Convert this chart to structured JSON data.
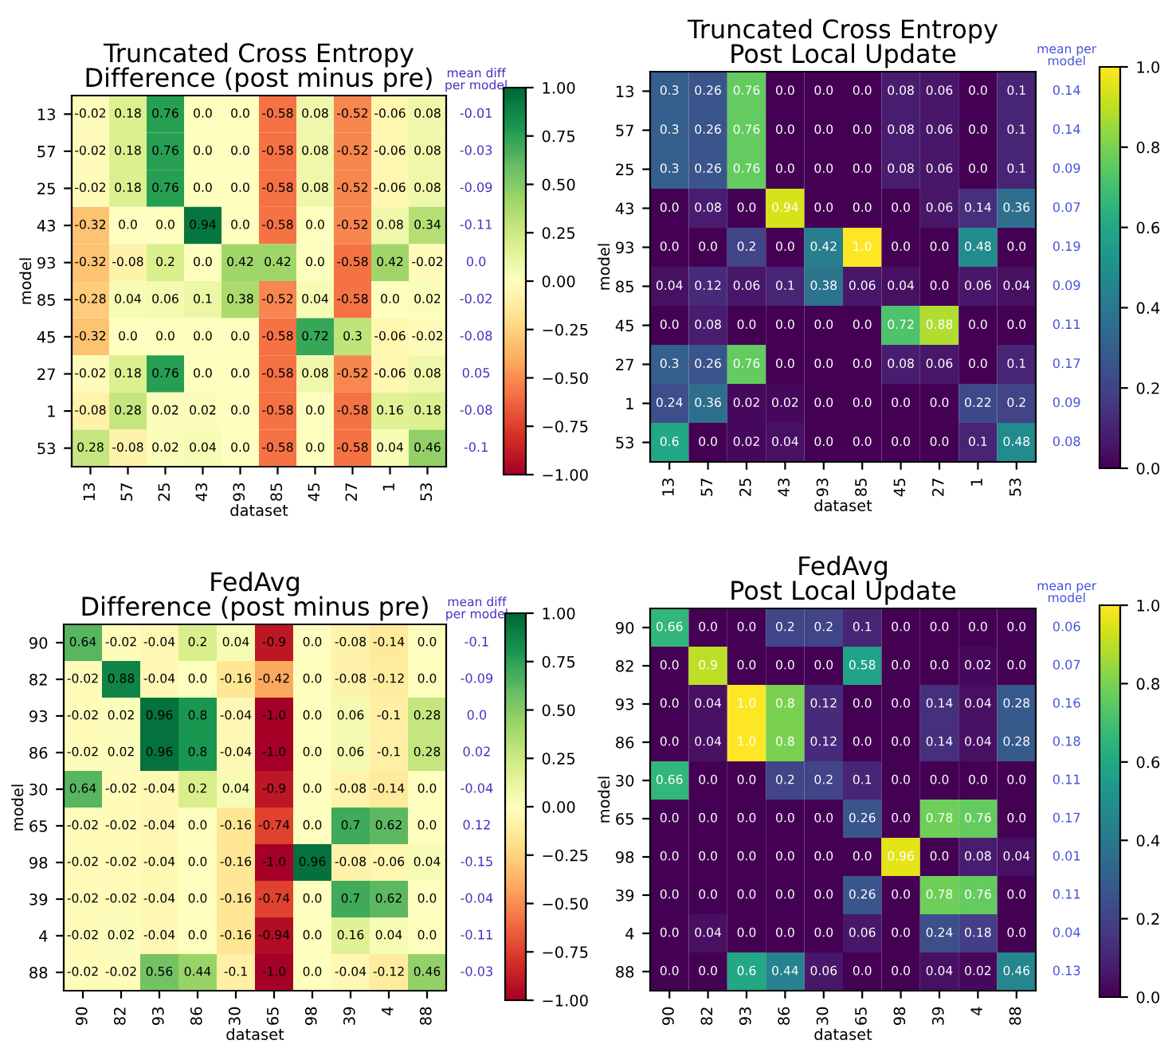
{
  "chart_data": [
    {
      "type": "heatmap",
      "title": "Truncated Cross Entropy\nDifference (post minus pre)",
      "xlabel": "dataset",
      "ylabel": "model",
      "categories": [
        "13",
        "57",
        "25",
        "43",
        "93",
        "85",
        "45",
        "27",
        "1",
        "53"
      ],
      "y_categories": [
        "13",
        "57",
        "25",
        "43",
        "93",
        "85",
        "45",
        "27",
        "1",
        "53"
      ],
      "y2_categories": [
        "-0.01",
        "-0.03",
        "-0.09",
        "-0.11",
        "0.0",
        "-0.02",
        "-0.08",
        "0.05",
        "-0.08",
        "-0.1"
      ],
      "annotations": [
        "mean diff\nper model"
      ],
      "cells": [
        [
          -0.02,
          0.18,
          0.76,
          0,
          0,
          -0.58,
          0.08,
          -0.52,
          -0.06,
          0.08
        ],
        [
          -0.02,
          0.18,
          0.76,
          0,
          0,
          -0.58,
          0.08,
          -0.52,
          -0.06,
          0.08
        ],
        [
          -0.02,
          0.18,
          0.76,
          0,
          0,
          -0.58,
          0.08,
          -0.52,
          -0.06,
          0.08
        ],
        [
          -0.32,
          0,
          0,
          0.94,
          0,
          -0.58,
          0,
          -0.52,
          0.08,
          0.34
        ],
        [
          -0.32,
          -0.08,
          0.2,
          0,
          0.42,
          0.42,
          0,
          -0.58,
          0.42,
          -0.02
        ],
        [
          -0.28,
          0.04,
          0.06,
          0.1,
          0.38,
          -0.52,
          0.04,
          -0.58,
          0,
          0.02
        ],
        [
          -0.32,
          0,
          0,
          0,
          0,
          -0.58,
          0.72,
          0.3,
          -0.06,
          -0.02
        ],
        [
          -0.02,
          0.18,
          0.76,
          0,
          0,
          -0.58,
          0.08,
          -0.52,
          -0.06,
          0.08
        ],
        [
          -0.08,
          0.28,
          0.02,
          0.02,
          0,
          -0.58,
          0,
          -0.58,
          0.16,
          0.18
        ],
        [
          0.28,
          -0.08,
          0.02,
          0.04,
          0,
          -0.58,
          0,
          -0.58,
          0.04,
          0.46
        ]
      ],
      "cell_labels": [
        [
          "-0.02",
          "0.18",
          "0.76",
          "0.0",
          "0.0",
          "-0.58",
          "0.08",
          "-0.52",
          "-0.06",
          "0.08"
        ],
        [
          "-0.02",
          "0.18",
          "0.76",
          "0.0",
          "0.0",
          "-0.58",
          "0.08",
          "-0.52",
          "-0.06",
          "0.08"
        ],
        [
          "-0.02",
          "0.18",
          "0.76",
          "0.0",
          "0.0",
          "-0.58",
          "0.08",
          "-0.52",
          "-0.06",
          "0.08"
        ],
        [
          "-0.32",
          "0.0",
          "0.0",
          "0.94",
          "0.0",
          "-0.58",
          "0.0",
          "-0.52",
          "0.08",
          "0.34"
        ],
        [
          "-0.32",
          "-0.08",
          "0.2",
          "0.0",
          "0.42",
          "0.42",
          "0.0",
          "-0.58",
          "0.42",
          "-0.02"
        ],
        [
          "-0.28",
          "0.04",
          "0.06",
          "0.1",
          "0.38",
          "-0.52",
          "0.04",
          "-0.58",
          "0.0",
          "0.02"
        ],
        [
          "-0.32",
          "0.0",
          "0.0",
          "0.0",
          "0.0",
          "-0.58",
          "0.72",
          "0.3",
          "-0.06",
          "-0.02"
        ],
        [
          "-0.02",
          "0.18",
          "0.76",
          "0.0",
          "0.0",
          "-0.58",
          "0.08",
          "-0.52",
          "-0.06",
          "0.08"
        ],
        [
          "-0.08",
          "0.28",
          "0.02",
          "0.02",
          "0.0",
          "-0.58",
          "0.0",
          "-0.58",
          "0.16",
          "0.18"
        ],
        [
          "0.28",
          "-0.08",
          "0.02",
          "0.04",
          "0.0",
          "-0.58",
          "0.0",
          "-0.58",
          "0.04",
          "0.46"
        ]
      ],
      "clim": [
        -1,
        1
      ],
      "cticks": [
        {
          "value": -1,
          "label": "−1.00"
        },
        {
          "value": -0.75,
          "label": "−0.75"
        },
        {
          "value": -0.5,
          "label": "−0.50"
        },
        {
          "value": -0.25,
          "label": "−0.25"
        },
        {
          "value": 0,
          "label": "0.00"
        },
        {
          "value": 0.25,
          "label": "0.25"
        },
        {
          "value": 0.5,
          "label": "0.50"
        },
        {
          "value": 0.75,
          "label": "0.75"
        },
        {
          "value": 1,
          "label": "1.00"
        }
      ]
    },
    {
      "type": "heatmap",
      "title": "Truncated Cross Entropy\nPost Local Update",
      "xlabel": "dataset",
      "ylabel": "model",
      "categories": [
        "13",
        "57",
        "25",
        "43",
        "93",
        "85",
        "45",
        "27",
        "1",
        "53"
      ],
      "y_categories": [
        "13",
        "57",
        "25",
        "43",
        "93",
        "85",
        "45",
        "27",
        "1",
        "53"
      ],
      "y2_categories": [
        "0.14",
        "0.14",
        "0.09",
        "0.07",
        "0.19",
        "0.09",
        "0.11",
        "0.17",
        "0.09",
        "0.08"
      ],
      "annotations": [
        "mean per\nmodel"
      ],
      "cells": [
        [
          0.3,
          0.26,
          0.76,
          0,
          0,
          0,
          0.08,
          0.06,
          0,
          0.1
        ],
        [
          0.3,
          0.26,
          0.76,
          0,
          0,
          0,
          0.08,
          0.06,
          0,
          0.1
        ],
        [
          0.3,
          0.26,
          0.76,
          0,
          0,
          0,
          0.08,
          0.06,
          0,
          0.1
        ],
        [
          0,
          0.08,
          0,
          0.94,
          0,
          0,
          0,
          0.06,
          0.14,
          0.36
        ],
        [
          0,
          0,
          0.2,
          0,
          0.42,
          1,
          0,
          0,
          0.48,
          0
        ],
        [
          0.04,
          0.12,
          0.06,
          0.1,
          0.38,
          0.06,
          0.04,
          0,
          0.06,
          0.04
        ],
        [
          0,
          0.08,
          0,
          0,
          0,
          0,
          0.72,
          0.88,
          0,
          0
        ],
        [
          0.3,
          0.26,
          0.76,
          0,
          0,
          0,
          0.08,
          0.06,
          0,
          0.1
        ],
        [
          0.24,
          0.36,
          0.02,
          0.02,
          0,
          0,
          0,
          0,
          0.22,
          0.2
        ],
        [
          0.6,
          0,
          0.02,
          0.04,
          0,
          0,
          0,
          0,
          0.1,
          0.48
        ]
      ],
      "cell_labels": [
        [
          "0.3",
          "0.26",
          "0.76",
          "0.0",
          "0.0",
          "0.0",
          "0.08",
          "0.06",
          "0.0",
          "0.1"
        ],
        [
          "0.3",
          "0.26",
          "0.76",
          "0.0",
          "0.0",
          "0.0",
          "0.08",
          "0.06",
          "0.0",
          "0.1"
        ],
        [
          "0.3",
          "0.26",
          "0.76",
          "0.0",
          "0.0",
          "0.0",
          "0.08",
          "0.06",
          "0.0",
          "0.1"
        ],
        [
          "0.0",
          "0.08",
          "0.0",
          "0.94",
          "0.0",
          "0.0",
          "0.0",
          "0.06",
          "0.14",
          "0.36"
        ],
        [
          "0.0",
          "0.0",
          "0.2",
          "0.0",
          "0.42",
          "1.0",
          "0.0",
          "0.0",
          "0.48",
          "0.0"
        ],
        [
          "0.04",
          "0.12",
          "0.06",
          "0.1",
          "0.38",
          "0.06",
          "0.04",
          "0.0",
          "0.06",
          "0.04"
        ],
        [
          "0.0",
          "0.08",
          "0.0",
          "0.0",
          "0.0",
          "0.0",
          "0.72",
          "0.88",
          "0.0",
          "0.0"
        ],
        [
          "0.3",
          "0.26",
          "0.76",
          "0.0",
          "0.0",
          "0.0",
          "0.08",
          "0.06",
          "0.0",
          "0.1"
        ],
        [
          "0.24",
          "0.36",
          "0.02",
          "0.02",
          "0.0",
          "0.0",
          "0.0",
          "0.0",
          "0.22",
          "0.2"
        ],
        [
          "0.6",
          "0.0",
          "0.02",
          "0.04",
          "0.0",
          "0.0",
          "0.0",
          "0.0",
          "0.1",
          "0.48"
        ]
      ],
      "clim": [
        0,
        1
      ],
      "cticks": [
        {
          "value": 0,
          "label": "0.0"
        },
        {
          "value": 0.2,
          "label": "0.2"
        },
        {
          "value": 0.4,
          "label": "0.4"
        },
        {
          "value": 0.6,
          "label": "0.6"
        },
        {
          "value": 0.8,
          "label": "0.8"
        },
        {
          "value": 1,
          "label": "1.0"
        }
      ]
    },
    {
      "type": "heatmap",
      "title": "FedAvg\nDifference (post minus pre)",
      "xlabel": "dataset",
      "ylabel": "model",
      "categories": [
        "90",
        "82",
        "93",
        "86",
        "30",
        "65",
        "98",
        "39",
        "4",
        "88"
      ],
      "y_categories": [
        "90",
        "82",
        "93",
        "86",
        "30",
        "65",
        "98",
        "39",
        "4",
        "88"
      ],
      "y2_categories": [
        "-0.1",
        "-0.09",
        "0.0",
        "0.02",
        "-0.04",
        "0.12",
        "-0.15",
        "-0.04",
        "-0.11",
        "-0.03"
      ],
      "annotations": [
        "mean diff\nper model"
      ],
      "cells": [
        [
          0.64,
          -0.02,
          -0.04,
          0.2,
          0.04,
          -0.9,
          0,
          -0.08,
          -0.14,
          0
        ],
        [
          -0.02,
          0.88,
          -0.04,
          0,
          -0.16,
          -0.42,
          0,
          -0.08,
          -0.12,
          0
        ],
        [
          -0.02,
          0.02,
          0.96,
          0.8,
          -0.04,
          -1,
          0,
          0.06,
          -0.1,
          0.28
        ],
        [
          -0.02,
          0.02,
          0.96,
          0.8,
          -0.04,
          -1,
          0,
          0.06,
          -0.1,
          0.28
        ],
        [
          0.64,
          -0.02,
          -0.04,
          0.2,
          0.04,
          -0.9,
          0,
          -0.08,
          -0.14,
          0
        ],
        [
          -0.02,
          -0.02,
          -0.04,
          0,
          -0.16,
          -0.74,
          0,
          0.7,
          0.62,
          0
        ],
        [
          -0.02,
          -0.02,
          -0.04,
          0,
          -0.16,
          -1,
          0.96,
          -0.08,
          -0.06,
          0.04
        ],
        [
          -0.02,
          -0.02,
          -0.04,
          0,
          -0.16,
          -0.74,
          0,
          0.7,
          0.62,
          0
        ],
        [
          -0.02,
          0.02,
          -0.04,
          0,
          -0.16,
          -0.94,
          0,
          0.16,
          0.04,
          0
        ],
        [
          -0.02,
          -0.02,
          0.56,
          0.44,
          -0.1,
          -1,
          0,
          -0.04,
          -0.12,
          0.46
        ]
      ],
      "cell_labels": [
        [
          "0.64",
          "-0.02",
          "-0.04",
          "0.2",
          "0.04",
          "-0.9",
          "0.0",
          "-0.08",
          "-0.14",
          "0.0"
        ],
        [
          "-0.02",
          "0.88",
          "-0.04",
          "0.0",
          "-0.16",
          "-0.42",
          "0.0",
          "-0.08",
          "-0.12",
          "0.0"
        ],
        [
          "-0.02",
          "0.02",
          "0.96",
          "0.8",
          "-0.04",
          "-1.0",
          "0.0",
          "0.06",
          "-0.1",
          "0.28"
        ],
        [
          "-0.02",
          "0.02",
          "0.96",
          "0.8",
          "-0.04",
          "-1.0",
          "0.0",
          "0.06",
          "-0.1",
          "0.28"
        ],
        [
          "0.64",
          "-0.02",
          "-0.04",
          "0.2",
          "0.04",
          "-0.9",
          "0.0",
          "-0.08",
          "-0.14",
          "0.0"
        ],
        [
          "-0.02",
          "-0.02",
          "-0.04",
          "0.0",
          "-0.16",
          "-0.74",
          "0.0",
          "0.7",
          "0.62",
          "0.0"
        ],
        [
          "-0.02",
          "-0.02",
          "-0.04",
          "0.0",
          "-0.16",
          "-1.0",
          "0.96",
          "-0.08",
          "-0.06",
          "0.04"
        ],
        [
          "-0.02",
          "-0.02",
          "-0.04",
          "0.0",
          "-0.16",
          "-0.74",
          "0.0",
          "0.7",
          "0.62",
          "0.0"
        ],
        [
          "-0.02",
          "0.02",
          "-0.04",
          "0.0",
          "-0.16",
          "-0.94",
          "0.0",
          "0.16",
          "0.04",
          "0.0"
        ],
        [
          "-0.02",
          "-0.02",
          "0.56",
          "0.44",
          "-0.1",
          "-1.0",
          "0.0",
          "-0.04",
          "-0.12",
          "0.46"
        ]
      ],
      "clim": [
        -1,
        1
      ],
      "cticks": [
        {
          "value": -1,
          "label": "−1.00"
        },
        {
          "value": -0.75,
          "label": "−0.75"
        },
        {
          "value": -0.5,
          "label": "−0.50"
        },
        {
          "value": -0.25,
          "label": "−0.25"
        },
        {
          "value": 0,
          "label": "0.00"
        },
        {
          "value": 0.25,
          "label": "0.25"
        },
        {
          "value": 0.5,
          "label": "0.50"
        },
        {
          "value": 0.75,
          "label": "0.75"
        },
        {
          "value": 1,
          "label": "1.00"
        }
      ]
    },
    {
      "type": "heatmap",
      "title": "FedAvg\nPost Local Update",
      "xlabel": "dataset",
      "ylabel": "model",
      "categories": [
        "90",
        "82",
        "93",
        "86",
        "30",
        "65",
        "98",
        "39",
        "4",
        "88"
      ],
      "y_categories": [
        "90",
        "82",
        "93",
        "86",
        "30",
        "65",
        "98",
        "39",
        "4",
        "88"
      ],
      "y2_categories": [
        "0.06",
        "0.07",
        "0.16",
        "0.18",
        "0.11",
        "0.17",
        "0.01",
        "0.11",
        "0.04",
        "0.13"
      ],
      "annotations": [
        "mean per\nmodel"
      ],
      "cells": [
        [
          0.66,
          0,
          0,
          0.2,
          0.2,
          0.1,
          0,
          0,
          0,
          0
        ],
        [
          0,
          0.9,
          0,
          0,
          0,
          0.58,
          0,
          0,
          0.02,
          0
        ],
        [
          0,
          0.04,
          1,
          0.8,
          0.12,
          0,
          0,
          0.14,
          0.04,
          0.28
        ],
        [
          0,
          0.04,
          1,
          0.8,
          0.12,
          0,
          0,
          0.14,
          0.04,
          0.28
        ],
        [
          0.66,
          0,
          0,
          0.2,
          0.2,
          0.1,
          0,
          0,
          0,
          0
        ],
        [
          0,
          0,
          0,
          0,
          0,
          0.26,
          0,
          0.78,
          0.76,
          0
        ],
        [
          0,
          0,
          0,
          0,
          0,
          0,
          0.96,
          0,
          0.08,
          0.04
        ],
        [
          0,
          0,
          0,
          0,
          0,
          0.26,
          0,
          0.78,
          0.76,
          0
        ],
        [
          0,
          0.04,
          0,
          0,
          0,
          0.06,
          0,
          0.24,
          0.18,
          0
        ],
        [
          0,
          0,
          0.6,
          0.44,
          0.06,
          0,
          0,
          0.04,
          0.02,
          0.46
        ]
      ],
      "cell_labels": [
        [
          "0.66",
          "0.0",
          "0.0",
          "0.2",
          "0.2",
          "0.1",
          "0.0",
          "0.0",
          "0.0",
          "0.0"
        ],
        [
          "0.0",
          "0.9",
          "0.0",
          "0.0",
          "0.0",
          "0.58",
          "0.0",
          "0.0",
          "0.02",
          "0.0"
        ],
        [
          "0.0",
          "0.04",
          "1.0",
          "0.8",
          "0.12",
          "0.0",
          "0.0",
          "0.14",
          "0.04",
          "0.28"
        ],
        [
          "0.0",
          "0.04",
          "1.0",
          "0.8",
          "0.12",
          "0.0",
          "0.0",
          "0.14",
          "0.04",
          "0.28"
        ],
        [
          "0.66",
          "0.0",
          "0.0",
          "0.2",
          "0.2",
          "0.1",
          "0.0",
          "0.0",
          "0.0",
          "0.0"
        ],
        [
          "0.0",
          "0.0",
          "0.0",
          "0.0",
          "0.0",
          "0.26",
          "0.0",
          "0.78",
          "0.76",
          "0.0"
        ],
        [
          "0.0",
          "0.0",
          "0.0",
          "0.0",
          "0.0",
          "0.0",
          "0.96",
          "0.0",
          "0.08",
          "0.04"
        ],
        [
          "0.0",
          "0.0",
          "0.0",
          "0.0",
          "0.0",
          "0.26",
          "0.0",
          "0.78",
          "0.76",
          "0.0"
        ],
        [
          "0.0",
          "0.04",
          "0.0",
          "0.0",
          "0.0",
          "0.06",
          "0.0",
          "0.24",
          "0.18",
          "0.0"
        ],
        [
          "0.0",
          "0.0",
          "0.6",
          "0.44",
          "0.06",
          "0.0",
          "0.0",
          "0.04",
          "0.02",
          "0.46"
        ]
      ],
      "clim": [
        0,
        1
      ],
      "cticks": [
        {
          "value": 0,
          "label": "0.0"
        },
        {
          "value": 0.2,
          "label": "0.2"
        },
        {
          "value": 0.4,
          "label": "0.4"
        },
        {
          "value": 0.6,
          "label": "0.6"
        },
        {
          "value": 0.8,
          "label": "0.8"
        },
        {
          "value": 1,
          "label": "1.0"
        }
      ]
    }
  ]
}
